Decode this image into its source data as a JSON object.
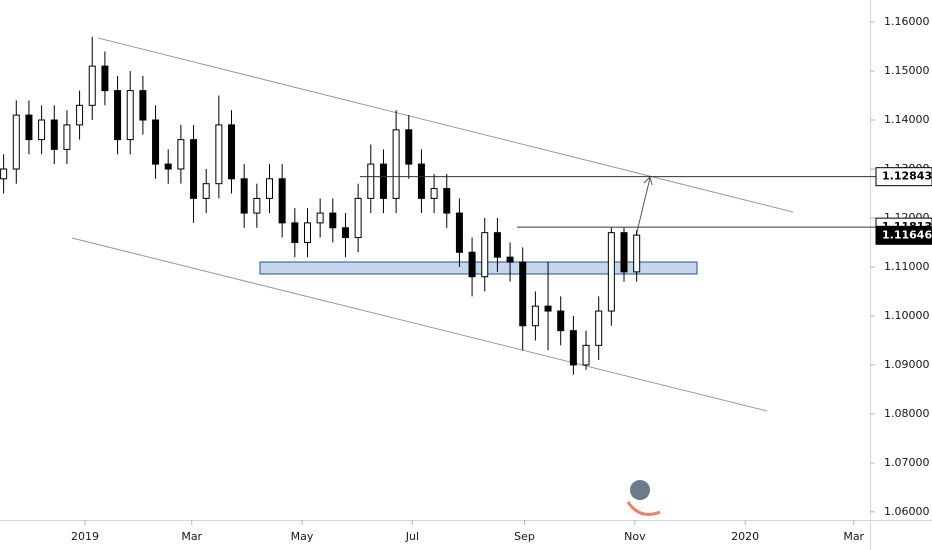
{
  "chart_data": {
    "type": "candlestick",
    "x": [
      -45,
      -38,
      -31,
      -24,
      -17,
      -10,
      -3,
      4,
      11,
      18,
      25,
      32,
      39,
      46,
      53,
      60,
      67,
      74,
      81,
      88,
      95,
      102,
      109,
      116,
      123,
      130,
      137,
      144,
      151,
      158,
      165,
      172,
      179,
      186,
      193,
      200,
      207,
      214,
      221,
      228,
      235,
      242,
      249,
      256,
      263,
      270,
      277,
      284,
      291,
      298,
      305
    ],
    "open": [
      1.128,
      1.13,
      1.141,
      1.136,
      1.14,
      1.134,
      1.139,
      1.143,
      1.151,
      1.146,
      1.136,
      1.146,
      1.14,
      1.131,
      1.13,
      1.136,
      1.124,
      1.127,
      1.139,
      1.128,
      1.121,
      1.124,
      1.128,
      1.119,
      1.115,
      1.119,
      1.121,
      1.118,
      1.116,
      1.124,
      1.131,
      1.124,
      1.138,
      1.131,
      1.124,
      1.126,
      1.121,
      1.113,
      1.108,
      1.117,
      1.112,
      1.111,
      1.098,
      1.102,
      1.101,
      1.097,
      1.09,
      1.094,
      1.101,
      1.117,
      1.109
    ],
    "high": [
      1.133,
      1.144,
      1.144,
      1.143,
      1.143,
      1.142,
      1.146,
      1.157,
      1.154,
      1.149,
      1.15,
      1.149,
      1.143,
      1.134,
      1.139,
      1.139,
      1.13,
      1.145,
      1.142,
      1.131,
      1.127,
      1.131,
      1.131,
      1.122,
      1.122,
      1.124,
      1.124,
      1.121,
      1.127,
      1.135,
      1.134,
      1.142,
      1.141,
      1.134,
      1.129,
      1.129,
      1.124,
      1.116,
      1.12,
      1.12,
      1.115,
      1.114,
      1.105,
      1.111,
      1.104,
      1.1,
      1.097,
      1.104,
      1.118,
      1.118,
      1.1175
    ],
    "low": [
      1.125,
      1.127,
      1.133,
      1.133,
      1.131,
      1.131,
      1.136,
      1.14,
      1.143,
      1.133,
      1.133,
      1.137,
      1.128,
      1.127,
      1.127,
      1.119,
      1.121,
      1.124,
      1.125,
      1.118,
      1.118,
      1.121,
      1.116,
      1.112,
      1.112,
      1.116,
      1.115,
      1.112,
      1.113,
      1.121,
      1.121,
      1.121,
      1.128,
      1.121,
      1.121,
      1.118,
      1.11,
      1.104,
      1.105,
      1.109,
      1.107,
      1.093,
      1.095,
      1.093,
      1.094,
      1.088,
      1.089,
      1.091,
      1.098,
      1.107,
      1.107
    ],
    "close": [
      1.13,
      1.141,
      1.136,
      1.14,
      1.134,
      1.139,
      1.143,
      1.151,
      1.146,
      1.136,
      1.146,
      1.14,
      1.131,
      1.13,
      1.136,
      1.124,
      1.127,
      1.139,
      1.128,
      1.121,
      1.124,
      1.128,
      1.119,
      1.115,
      1.119,
      1.121,
      1.118,
      1.116,
      1.124,
      1.131,
      1.124,
      1.138,
      1.131,
      1.124,
      1.126,
      1.121,
      1.113,
      1.108,
      1.117,
      1.112,
      1.111,
      1.098,
      1.102,
      1.101,
      1.097,
      1.09,
      1.094,
      1.101,
      1.117,
      1.109,
      1.1165
    ],
    "xlim": [
      -47,
      434
    ],
    "xticks": [
      {
        "value": 0,
        "label": "2019"
      },
      {
        "value": 59,
        "label": "Mar"
      },
      {
        "value": 120,
        "label": "May"
      },
      {
        "value": 181,
        "label": "Jul"
      },
      {
        "value": 243,
        "label": "Sep"
      },
      {
        "value": 304,
        "label": "Nov"
      },
      {
        "value": 365,
        "label": "2020"
      },
      {
        "value": 425,
        "label": "Mar"
      }
    ],
    "ylim": [
      1.0563,
      1.1645
    ],
    "yticks": [
      {
        "value": 1.06,
        "label": "1.06000"
      },
      {
        "value": 1.07,
        "label": "1.07000"
      },
      {
        "value": 1.08,
        "label": "1.08000"
      },
      {
        "value": 1.09,
        "label": "1.09000"
      },
      {
        "value": 1.1,
        "label": "1.10000"
      },
      {
        "value": 1.11,
        "label": "1.11000"
      },
      {
        "value": 1.12,
        "label": "1.12000"
      },
      {
        "value": 1.13,
        "label": "1.13000"
      },
      {
        "value": 1.14,
        "label": "1.14000"
      },
      {
        "value": 1.15,
        "label": "1.15000"
      },
      {
        "value": 1.16,
        "label": "1.16000"
      }
    ],
    "price_labels": [
      1.12843,
      1.11813,
      1.11646
    ]
  }
}
